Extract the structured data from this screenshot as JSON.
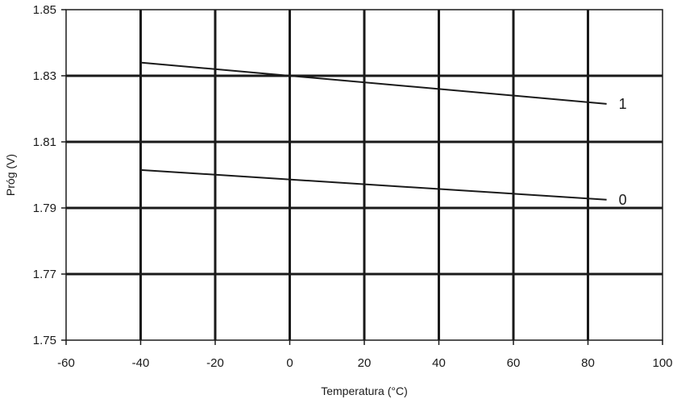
{
  "chart_data": {
    "type": "line",
    "xlabel": "Temperatura (°C)",
    "ylabel": "Próg (V)",
    "xlim": [
      -60,
      100
    ],
    "ylim": [
      1.75,
      1.85
    ],
    "x_ticks": [
      "-60",
      "-40",
      "-20",
      "0",
      "20",
      "40",
      "60",
      "80",
      "100"
    ],
    "y_ticks": [
      "1.75",
      "1.77",
      "1.79",
      "1.81",
      "1.83",
      "1.85"
    ],
    "grid": true,
    "series": [
      {
        "name": "1",
        "x": [
          -40,
          85
        ],
        "y": [
          1.834,
          1.8215
        ]
      },
      {
        "name": "0",
        "x": [
          -40,
          85
        ],
        "y": [
          1.8015,
          1.7925
        ]
      }
    ]
  }
}
